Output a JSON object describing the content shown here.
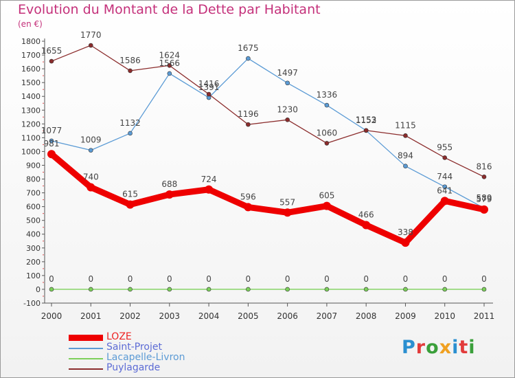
{
  "header": {
    "title": "Evolution du Montant de la Dette par Habitant",
    "unit": "(en €)"
  },
  "logo": {
    "letters": [
      "P",
      "r",
      "o",
      "x",
      "i",
      "t",
      "i"
    ],
    "colors": [
      "#2a8fd0",
      "#e23b3b",
      "#3a9f3a",
      "#f0a020",
      "#2a8fd0",
      "#e23b3b",
      "#3a9f3a"
    ]
  },
  "chart_data": {
    "type": "line",
    "title": "Evolution du Montant de la Dette par Habitant",
    "ylabel": "(en €)",
    "x": [
      "2000",
      "2001",
      "2002",
      "2003",
      "2004",
      "2005",
      "2006",
      "2007",
      "2008",
      "2009",
      "2010",
      "2011"
    ],
    "ylim": [
      -100,
      1800
    ],
    "yticks": [
      -100,
      0,
      100,
      200,
      300,
      400,
      500,
      600,
      700,
      800,
      900,
      1000,
      1100,
      1200,
      1300,
      1400,
      1500,
      1600,
      1700,
      1800
    ],
    "grid": false,
    "legend_position": "bottom-left",
    "series": [
      {
        "name": "LOZE",
        "color": "#ee0000",
        "values": [
          981,
          740,
          615,
          688,
          724,
          596,
          557,
          605,
          466,
          338,
          641,
          579
        ]
      },
      {
        "name": "Saint-Projet",
        "color": "#5b9bd5",
        "values": [
          1077,
          1009,
          1132,
          1566,
          1391,
          1675,
          1497,
          1336,
          1152,
          894,
          744,
          589
        ]
      },
      {
        "name": "Lacapelle-Livron",
        "color": "#7cd05a",
        "values": [
          0,
          0,
          0,
          0,
          0,
          0,
          0,
          0,
          0,
          0,
          0,
          0
        ]
      },
      {
        "name": "Puylagarde",
        "color": "#8b2c2c",
        "values": [
          1655,
          1770,
          1586,
          1624,
          1416,
          1196,
          1230,
          1060,
          1153,
          1115,
          955,
          816
        ]
      }
    ]
  }
}
